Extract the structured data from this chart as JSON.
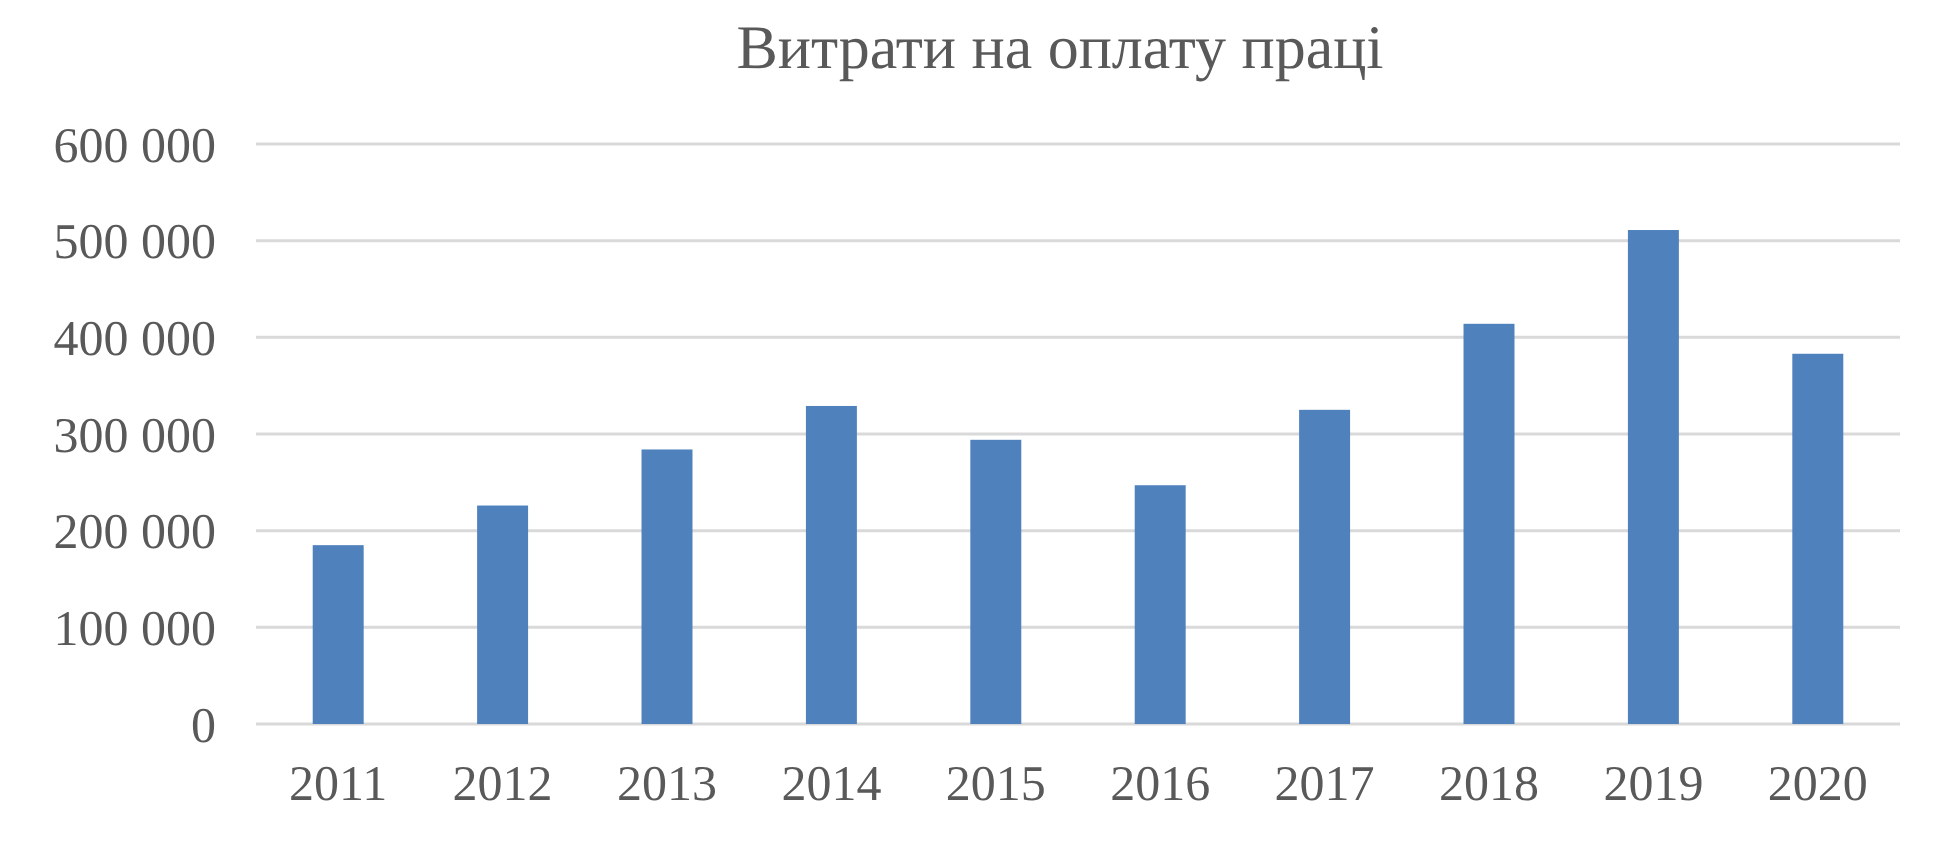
{
  "chart_data": {
    "type": "bar",
    "title": "Витрати на оплату праці",
    "categories": [
      "2011",
      "2012",
      "2013",
      "2014",
      "2015",
      "2016",
      "2017",
      "2018",
      "2019",
      "2020"
    ],
    "values": [
      185000,
      226000,
      284000,
      329000,
      294000,
      247000,
      325000,
      414000,
      511000,
      383000
    ],
    "color": "#4f81bd",
    "ylim": [
      0,
      600000
    ],
    "yticks": [
      0,
      {
        "value": 100000,
        "label": "100 000"
      },
      {
        "value": 200000,
        "label": "200 000"
      },
      {
        "value": 300000,
        "label": "300 000"
      },
      {
        "value": 400000,
        "label": "400 000"
      },
      {
        "value": 500000,
        "label": "500 000"
      },
      {
        "value": 600000,
        "label": "600 000"
      }
    ],
    "grid": true
  }
}
